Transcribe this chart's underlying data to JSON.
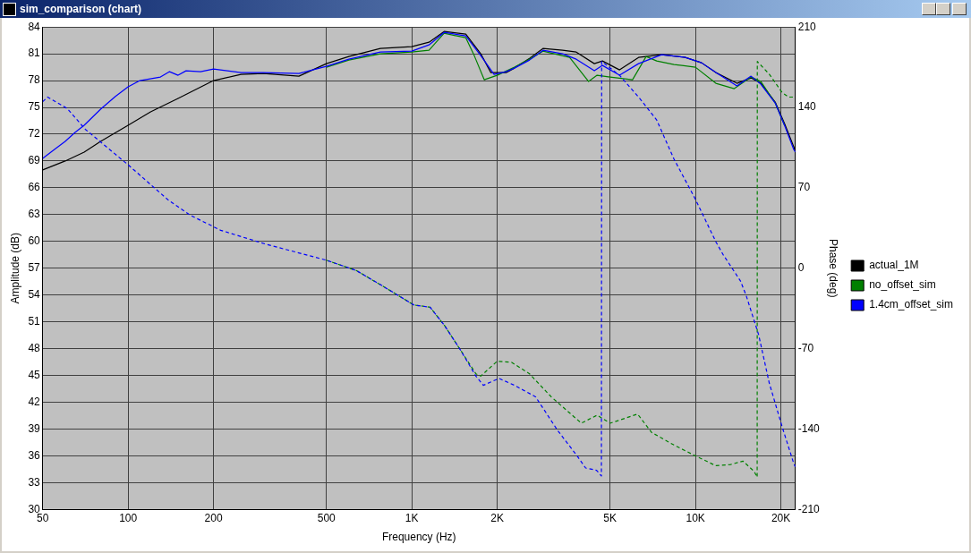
{
  "chart_data": {
    "type": "line",
    "title": "sim_comparison (chart)",
    "xlabel": "Frequency (Hz)",
    "ylabel": "Amplitude (dB)",
    "y2label": "Phase (deg)",
    "log": "x",
    "grid": true,
    "legend": "right",
    "marker": "none",
    "xlim": [
      50,
      22500
    ],
    "xticks": [
      50,
      100,
      200,
      500,
      {
        "value": 1000,
        "label": "1K"
      },
      {
        "value": 2000,
        "label": "2K"
      },
      {
        "value": 5000,
        "label": "5K"
      },
      {
        "value": 10000,
        "label": "10K"
      },
      {
        "value": 20000,
        "label": "20K"
      }
    ],
    "ylim": [
      30,
      84
    ],
    "yticks": [
      30,
      33,
      36,
      39,
      42,
      45,
      48,
      51,
      54,
      57,
      60,
      63,
      66,
      69,
      72,
      75,
      78,
      81,
      84
    ],
    "y2lim": [
      -210,
      210
    ],
    "y2ticks": [
      -210,
      -140,
      -70,
      0,
      70,
      140,
      210
    ],
    "series": [
      {
        "type": "line",
        "name": "actual_1M",
        "color": "#000000",
        "line_style": "solid",
        "x": [
          50,
          60,
          70,
          80,
          100,
          120,
          150,
          200,
          250,
          300,
          400,
          500,
          600,
          775,
          1000,
          1150,
          1300,
          1550,
          1750,
          1900,
          2150,
          2300,
          2600,
          2900,
          3400,
          3800,
          4400,
          4700,
          5400,
          6300,
          7600,
          9200,
          10500,
          11800,
          14000,
          15700,
          17000,
          19100,
          20600,
          22200,
          22500
        ],
        "values": [
          68,
          69,
          70,
          71.2,
          73,
          74.5,
          76,
          78,
          78.7,
          78.8,
          78.5,
          79.9,
          80.7,
          81.6,
          81.8,
          82.3,
          83.5,
          83.2,
          81,
          78.9,
          78.9,
          79.4,
          80.5,
          81.6,
          81.4,
          81.2,
          79.9,
          80.2,
          79.2,
          80.6,
          80.9,
          80.6,
          80,
          78.9,
          77.7,
          78.3,
          77.7,
          75.6,
          73.2,
          70.6,
          70.1
        ]
      },
      {
        "type": "line",
        "name": "no_offset_sim",
        "color": "#008000",
        "line_style": "solid",
        "x": [
          500,
          600,
          775,
          1000,
          1150,
          1300,
          1550,
          1650,
          1800,
          2000,
          2300,
          2600,
          2900,
          3600,
          4200,
          4500,
          5000,
          6000,
          6700,
          7300,
          8400,
          10000,
          11800,
          13700,
          15700,
          17000,
          19100,
          20600
        ],
        "values": [
          79.5,
          80.3,
          81,
          81.2,
          81.4,
          83.3,
          82.8,
          81,
          78.1,
          78.6,
          79.5,
          80.4,
          81.3,
          80.6,
          77.9,
          78.6,
          78.4,
          78.1,
          80.7,
          80.2,
          79.8,
          79.5,
          77.7,
          77.1,
          78.4,
          77.9,
          75.5,
          73
        ]
      },
      {
        "type": "line",
        "name": "1.4cm_offset_sim",
        "color": "#0000ff",
        "line_style": "solid",
        "x": [
          50,
          55,
          60,
          65,
          70,
          80,
          90,
          100,
          110,
          130,
          140,
          150,
          160,
          180,
          200,
          250,
          300,
          400,
          500,
          600,
          775,
          1000,
          1150,
          1300,
          1550,
          1750,
          1950,
          2150,
          2300,
          2600,
          2900,
          3400,
          3800,
          4400,
          4700,
          5400,
          6300,
          7600,
          9200,
          10500,
          11800,
          14000,
          15700,
          17000,
          19100,
          20600,
          22200,
          22500
        ],
        "values": [
          69.3,
          70.3,
          71.2,
          72.2,
          73,
          74.8,
          76.2,
          77.3,
          78,
          78.4,
          79,
          78.6,
          79.1,
          79,
          79.3,
          78.9,
          78.9,
          78.8,
          79.6,
          80.4,
          81.2,
          81.3,
          82,
          83.4,
          83,
          80.8,
          78.7,
          79,
          79.4,
          80.3,
          81.4,
          81,
          80.4,
          79.1,
          79.7,
          78.6,
          79.9,
          80.9,
          80.6,
          80,
          78.9,
          77.4,
          78.5,
          77.6,
          75.5,
          73,
          70.3,
          70
        ]
      },
      {
        "type": "line",
        "color": "#008000",
        "axis": "y2",
        "line_style": "dashed",
        "x": [
          499,
          637,
          795,
          1016,
          1160,
          1305,
          1482,
          1683,
          1750,
          2000,
          2250,
          2600,
          3100,
          3960,
          4500,
          5000,
          5600,
          6250,
          7000,
          8400,
          10100,
          11800,
          13300,
          14700,
          16100,
          16500,
          16520,
          18200,
          20200,
          21300,
          22400
        ],
        "values": [
          7,
          -2,
          -16,
          -32,
          -34,
          -50,
          -71,
          -92,
          -94,
          -81,
          -82,
          -92,
          -112,
          -135,
          -128,
          -135,
          -131,
          -127,
          -143,
          -154,
          -164,
          -172,
          -171,
          -168,
          -177,
          -182,
          180,
          169,
          153,
          149,
          149
        ]
      },
      {
        "type": "line",
        "color": "#0000ff",
        "axis": "y2",
        "line_style": "dashed",
        "x": [
          50,
          52,
          61,
          70.6,
          100,
          139,
          166,
          212,
          305,
          499,
          637,
          795,
          1016,
          1160,
          1305,
          1482,
          1683,
          1787,
          2030,
          2300,
          2731,
          3260,
          3840,
          4100,
          4480,
          4660,
          4670,
          5400,
          6400,
          7300,
          8400,
          9950,
          11800,
          12500,
          14400,
          15100,
          16700,
          18200,
          20200,
          22200,
          22500
        ],
        "values": [
          145,
          149,
          139,
          121,
          90,
          59,
          46,
          33,
          21,
          7,
          -2,
          -16,
          -32,
          -34,
          -50,
          -71,
          -94,
          -102,
          -96,
          -102,
          -112,
          -141,
          -164,
          -174,
          -176,
          -181,
          180,
          168,
          147,
          129,
          95,
          61,
          23,
          12,
          -11,
          -24,
          -58,
          -100,
          -138,
          -170,
          -173
        ]
      }
    ]
  }
}
